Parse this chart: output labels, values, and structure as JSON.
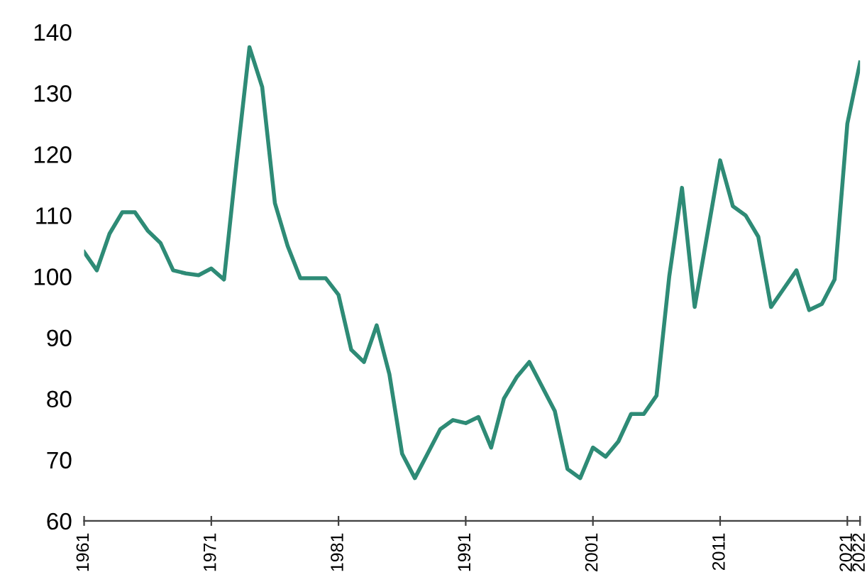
{
  "chart_data": {
    "type": "line",
    "x": [
      1961,
      1962,
      1963,
      1964,
      1965,
      1966,
      1967,
      1968,
      1969,
      1970,
      1971,
      1972,
      1973,
      1974,
      1975,
      1976,
      1977,
      1978,
      1979,
      1980,
      1981,
      1982,
      1983,
      1984,
      1985,
      1986,
      1987,
      1988,
      1989,
      1990,
      1991,
      1992,
      1993,
      1994,
      1995,
      1996,
      1997,
      1998,
      1999,
      2000,
      2001,
      2002,
      2003,
      2004,
      2005,
      2006,
      2007,
      2008,
      2009,
      2010,
      2011,
      2012,
      2013,
      2014,
      2015,
      2016,
      2017,
      2018,
      2019,
      2020,
      2021,
      2022
    ],
    "series": [
      {
        "color": "#2e8b76",
        "values": [
          104,
          101,
          107,
          110.5,
          110.5,
          107.5,
          105.5,
          101,
          100.5,
          100.2,
          101.3,
          99.5,
          119,
          137.5,
          131,
          112,
          105,
          99.7,
          99.7,
          99.7,
          97,
          88,
          86,
          92,
          84,
          71,
          67,
          71,
          75,
          76.5,
          76,
          77,
          72,
          80,
          83.5,
          86,
          82,
          78,
          68.5,
          67,
          72,
          70.5,
          73,
          77.5,
          77.5,
          80.5,
          100,
          114.5,
          95,
          107,
          119,
          111.5,
          110,
          106.5,
          95,
          98,
          101,
          94.5,
          95.5,
          99.5,
          125,
          135
        ]
      }
    ],
    "xlim": [
      1961,
      2022
    ],
    "xticks": [
      1961,
      1971,
      1981,
      1991,
      2001,
      2011,
      2021,
      2022
    ],
    "ylim": [
      60,
      140
    ],
    "yticks": [
      60,
      70,
      80,
      90,
      100,
      110,
      120,
      130,
      140
    ],
    "grid": false,
    "marker": "none",
    "line_style": "solid"
  }
}
